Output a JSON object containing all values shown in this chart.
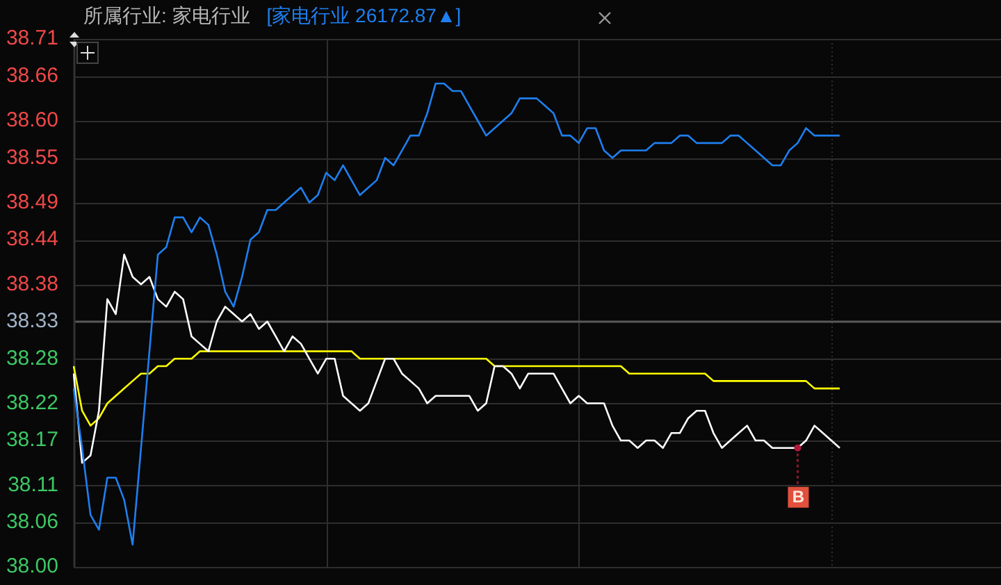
{
  "chart_data": {
    "type": "line",
    "title": "所属行业: 家电行业",
    "grid": true,
    "tick_labels": "y",
    "categories": [
      null,
      null,
      null,
      null,
      null,
      null,
      null,
      null,
      null,
      null,
      null,
      null,
      null,
      null,
      null,
      null,
      null,
      null,
      null,
      null,
      null,
      null,
      null,
      null,
      null,
      null,
      null,
      null,
      null,
      null,
      null,
      null,
      null,
      null,
      null,
      null,
      null,
      null,
      null,
      null,
      null,
      null,
      null,
      null,
      null,
      null,
      null,
      null,
      null,
      null,
      null,
      null,
      null,
      null,
      null,
      null,
      null,
      null,
      null,
      null,
      null,
      null,
      null,
      null,
      null,
      null,
      null,
      null,
      null,
      null,
      null,
      null,
      null,
      null,
      null,
      null,
      null,
      null,
      null,
      null,
      null,
      null,
      null,
      null,
      null,
      null,
      null,
      null,
      null,
      null,
      null,
      null
    ],
    "ylim": [
      38.0,
      38.71
    ],
    "yticks": [
      {
        "value": 38.0,
        "label": "38.00"
      },
      38.06,
      38.11,
      38.17,
      38.22,
      38.28,
      38.33,
      38.38,
      38.44,
      38.49,
      38.55,
      {
        "value": 38.6,
        "label": "38.60"
      },
      38.66,
      38.71
    ],
    "ref_lines": [
      {
        "axis": "y",
        "value": 38.33,
        "color": "#5a5a5a"
      }
    ],
    "annotations": [
      {
        "text": "B",
        "y": 38.16
      }
    ],
    "series": [
      {
        "name": "[家电行业 26172.87▲]",
        "color": "#1e7ff0",
        "values": [
          38.24,
          38.16,
          38.07,
          38.05,
          38.12,
          38.12,
          38.09,
          38.03,
          38.16,
          38.29,
          38.42,
          38.43,
          38.47,
          38.47,
          38.45,
          38.47,
          38.46,
          38.42,
          38.37,
          38.35,
          38.39,
          38.44,
          38.45,
          38.48,
          38.48,
          38.49,
          38.5,
          38.51,
          38.49,
          38.5,
          38.53,
          38.52,
          38.54,
          38.52,
          38.5,
          38.51,
          38.52,
          38.55,
          38.54,
          38.56,
          38.58,
          38.58,
          38.61,
          38.65,
          38.65,
          38.64,
          38.64,
          38.62,
          38.6,
          38.58,
          38.59,
          38.6,
          38.61,
          38.63,
          38.63,
          38.63,
          38.62,
          38.61,
          38.58,
          38.58,
          38.57,
          38.59,
          38.59,
          38.56,
          38.55,
          38.56,
          38.56,
          38.56,
          38.56,
          38.57,
          38.57,
          38.57,
          38.58,
          38.58,
          38.57,
          38.57,
          38.57,
          38.57,
          38.58,
          38.58,
          38.57,
          38.56,
          38.55,
          38.54,
          38.54,
          38.56,
          38.57,
          38.59,
          38.58,
          38.58,
          38.58,
          38.58
        ]
      },
      {
        "color": "#ffffff",
        "values": [
          38.26,
          38.14,
          38.15,
          38.21,
          38.36,
          38.34,
          38.42,
          38.39,
          38.38,
          38.39,
          38.36,
          38.35,
          38.37,
          38.36,
          38.31,
          38.3,
          38.29,
          38.33,
          38.35,
          38.34,
          38.33,
          38.34,
          38.32,
          38.33,
          38.31,
          38.29,
          38.31,
          38.3,
          38.28,
          38.26,
          38.28,
          38.28,
          38.23,
          38.22,
          38.21,
          38.22,
          38.25,
          38.28,
          38.28,
          38.26,
          38.25,
          38.24,
          38.22,
          38.23,
          38.23,
          38.23,
          38.23,
          38.23,
          38.21,
          38.22,
          38.27,
          38.27,
          38.26,
          38.24,
          38.26,
          38.26,
          38.26,
          38.26,
          38.24,
          38.22,
          38.23,
          38.22,
          38.22,
          38.22,
          38.19,
          38.17,
          38.17,
          38.16,
          38.17,
          38.17,
          38.16,
          38.18,
          38.18,
          38.2,
          38.21,
          38.21,
          38.18,
          38.16,
          38.17,
          38.18,
          38.19,
          38.17,
          38.17,
          38.16,
          38.16,
          38.16,
          38.16,
          38.17,
          38.19,
          38.18,
          38.17,
          38.16
        ]
      },
      {
        "color": "#ffff00",
        "values": [
          38.27,
          38.21,
          38.19,
          38.2,
          38.22,
          38.23,
          38.24,
          38.25,
          38.26,
          38.26,
          38.27,
          38.27,
          38.28,
          38.28,
          38.28,
          38.29,
          38.29,
          38.29,
          38.29,
          38.29,
          38.29,
          38.29,
          38.29,
          38.29,
          38.29,
          38.29,
          38.29,
          38.29,
          38.29,
          38.29,
          38.29,
          38.29,
          38.29,
          38.29,
          38.28,
          38.28,
          38.28,
          38.28,
          38.28,
          38.28,
          38.28,
          38.28,
          38.28,
          38.28,
          38.28,
          38.28,
          38.28,
          38.28,
          38.28,
          38.28,
          38.27,
          38.27,
          38.27,
          38.27,
          38.27,
          38.27,
          38.27,
          38.27,
          38.27,
          38.27,
          38.27,
          38.27,
          38.27,
          38.27,
          38.27,
          38.27,
          38.26,
          38.26,
          38.26,
          38.26,
          38.26,
          38.26,
          38.26,
          38.26,
          38.26,
          38.26,
          38.25,
          38.25,
          38.25,
          38.25,
          38.25,
          38.25,
          38.25,
          38.25,
          38.25,
          38.25,
          38.25,
          38.25,
          38.24,
          38.24,
          38.24,
          38.24
        ]
      }
    ]
  }
}
